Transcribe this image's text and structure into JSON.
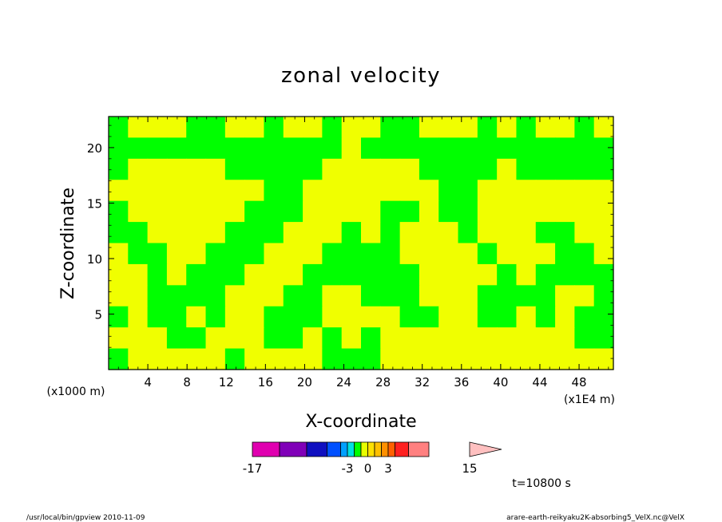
{
  "chart_data": {
    "type": "heatmap",
    "title": "zonal velocity",
    "xlabel": "X-coordinate",
    "ylabel": "Z-coordinate",
    "x_unit_note": "(x1E4 m)",
    "y_unit_note": "(x1000 m)",
    "x_range": [
      0,
      51.5
    ],
    "y_range": [
      0,
      22.8
    ],
    "x_ticks": [
      4,
      8,
      12,
      16,
      20,
      24,
      28,
      32,
      36,
      40,
      44,
      48
    ],
    "y_ticks": [
      5,
      10,
      15,
      20
    ],
    "time_label": "t=10800 s",
    "footer_left": "/usr/local/bin/gpview  2010-11-09",
    "footer_right": "arare-earth-reikyaku2K-absorbing5_VelX.nc@VelX",
    "colorbar": {
      "levels": [
        -17,
        -13,
        -9,
        -6,
        -4,
        -3,
        -2,
        -1,
        0,
        1,
        2,
        3,
        4,
        6,
        9,
        12,
        15
      ],
      "colors": [
        "#e000b0",
        "#8000b8",
        "#1010c0",
        "#0050ff",
        "#00a0ff",
        "#00e0e0",
        "#00ff00",
        "#e8ff00",
        "#ffe000",
        "#ffc000",
        "#ff9000",
        "#ff6000",
        "#ff2020",
        "#ff8080",
        "#ffc0c0"
      ],
      "tick_labels": [
        "-17",
        "-3",
        "0",
        "3",
        "15"
      ]
    },
    "field_colors": {
      "negative": "#00ff00",
      "positive": "#f0ff00"
    },
    "field": {
      "nx": 26,
      "ny": 12,
      "values": [
        [
          -2,
          1,
          1,
          1,
          -2,
          -2,
          1,
          1,
          -2,
          1,
          1,
          -2,
          1,
          1,
          -2,
          -2,
          1,
          1,
          1,
          -2,
          1,
          -2,
          1,
          1,
          -2,
          1
        ],
        [
          -2,
          -2,
          -2,
          -2,
          -2,
          -2,
          -2,
          -2,
          -2,
          -2,
          -2,
          -2,
          1,
          -2,
          -2,
          -2,
          -2,
          -2,
          -2,
          -2,
          -2,
          -2,
          -2,
          -2,
          -2,
          -2
        ],
        [
          -2,
          1,
          1,
          1,
          1,
          1,
          -2,
          -2,
          -2,
          -2,
          -2,
          1,
          1,
          1,
          1,
          1,
          -2,
          -2,
          -2,
          -2,
          1,
          -2,
          -2,
          -2,
          -2,
          -2
        ],
        [
          1,
          1,
          1,
          1,
          1,
          1,
          1,
          1,
          -2,
          -2,
          1,
          1,
          1,
          1,
          1,
          1,
          1,
          -2,
          -2,
          1,
          1,
          1,
          1,
          1,
          1,
          1
        ],
        [
          -2,
          1,
          1,
          1,
          1,
          1,
          1,
          -2,
          -2,
          -2,
          1,
          1,
          1,
          1,
          -2,
          -2,
          1,
          -2,
          -2,
          1,
          1,
          1,
          1,
          1,
          1,
          1
        ],
        [
          -2,
          -2,
          1,
          1,
          1,
          1,
          -2,
          -2,
          -2,
          1,
          1,
          1,
          -2,
          1,
          -2,
          1,
          1,
          1,
          -2,
          1,
          1,
          1,
          -2,
          -2,
          1,
          1
        ],
        [
          1,
          -2,
          -2,
          1,
          1,
          -2,
          -2,
          -2,
          1,
          1,
          1,
          -2,
          -2,
          -2,
          -2,
          1,
          1,
          1,
          1,
          -2,
          1,
          1,
          1,
          -2,
          -2,
          1
        ],
        [
          1,
          1,
          -2,
          1,
          -2,
          -2,
          -2,
          1,
          1,
          1,
          -2,
          -2,
          -2,
          -2,
          -2,
          -2,
          1,
          1,
          1,
          1,
          -2,
          1,
          -2,
          -2,
          -2,
          -2
        ],
        [
          1,
          1,
          -2,
          -2,
          -2,
          -2,
          1,
          1,
          1,
          -2,
          -2,
          1,
          1,
          -2,
          -2,
          -2,
          1,
          1,
          1,
          -2,
          -2,
          -2,
          -2,
          1,
          1,
          -2
        ],
        [
          -2,
          1,
          -2,
          -2,
          1,
          -2,
          1,
          1,
          -2,
          -2,
          -2,
          1,
          1,
          1,
          1,
          -2,
          -2,
          1,
          1,
          -2,
          -2,
          1,
          -2,
          1,
          -2,
          -2
        ],
        [
          1,
          1,
          1,
          -2,
          -2,
          1,
          1,
          1,
          -2,
          -2,
          1,
          -2,
          1,
          -2,
          1,
          1,
          1,
          1,
          1,
          1,
          1,
          1,
          1,
          1,
          -2,
          -2
        ],
        [
          -2,
          1,
          1,
          1,
          1,
          1,
          -2,
          1,
          1,
          1,
          1,
          -2,
          -2,
          -2,
          1,
          1,
          1,
          1,
          1,
          1,
          1,
          1,
          1,
          1,
          1,
          1
        ]
      ]
    }
  }
}
